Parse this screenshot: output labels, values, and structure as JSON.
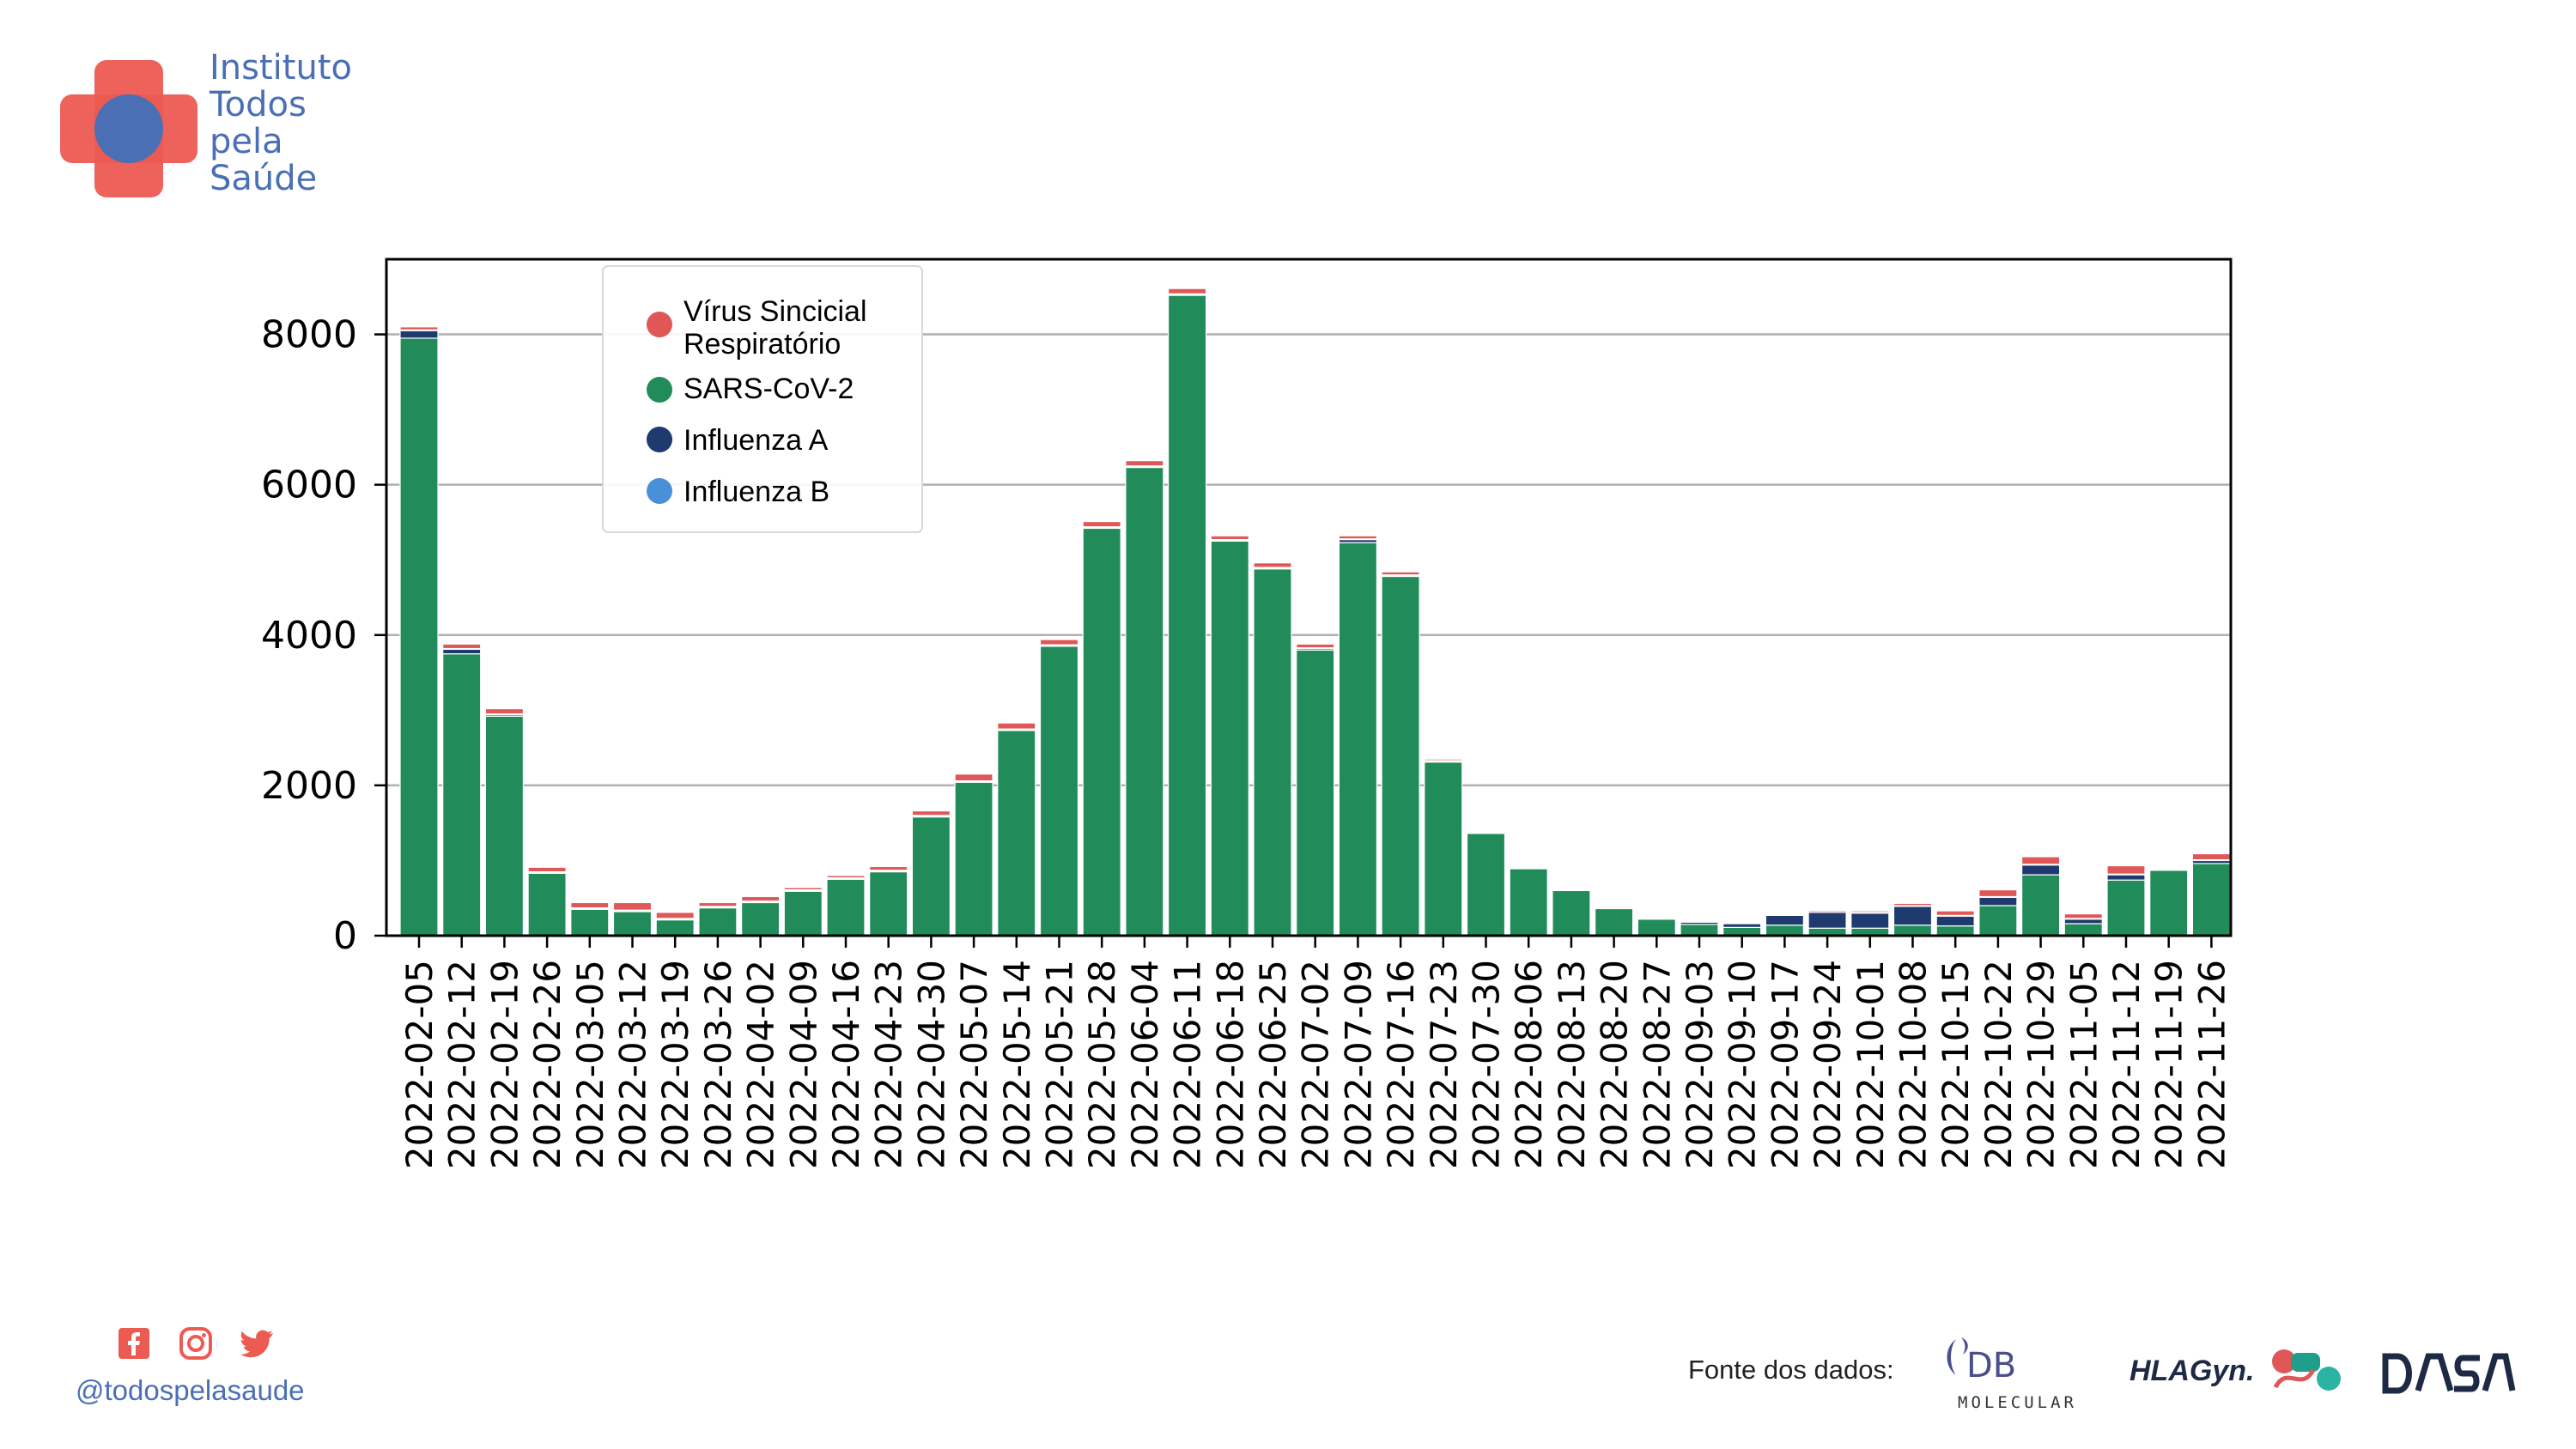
{
  "header": {
    "logo_name": "cross-logo-icon",
    "org_lines": [
      "Instituto",
      "Todos",
      "pela",
      "Saúde"
    ]
  },
  "chart_data": {
    "type": "bar",
    "stacked": true,
    "title": "",
    "xlabel": "",
    "ylabel": "",
    "ylim": [
      0,
      9000
    ],
    "yticks": [
      0,
      2000,
      4000,
      6000,
      8000
    ],
    "grid": "horizontal",
    "legend_position": "top-left",
    "categories": [
      "2022-02-05",
      "2022-02-12",
      "2022-02-19",
      "2022-02-26",
      "2022-03-05",
      "2022-03-12",
      "2022-03-19",
      "2022-03-26",
      "2022-04-02",
      "2022-04-09",
      "2022-04-16",
      "2022-04-23",
      "2022-04-30",
      "2022-05-07",
      "2022-05-14",
      "2022-05-21",
      "2022-05-28",
      "2022-06-04",
      "2022-06-11",
      "2022-06-18",
      "2022-06-25",
      "2022-07-02",
      "2022-07-09",
      "2022-07-16",
      "2022-07-23",
      "2022-07-30",
      "2022-08-06",
      "2022-08-13",
      "2022-08-20",
      "2022-08-27",
      "2022-09-03",
      "2022-09-10",
      "2022-09-17",
      "2022-09-24",
      "2022-10-01",
      "2022-10-08",
      "2022-10-15",
      "2022-10-22",
      "2022-10-29",
      "2022-11-05",
      "2022-11-12",
      "2022-11-19",
      "2022-11-26"
    ],
    "series": [
      {
        "name": "SARS-CoV-2",
        "color": "#218c5a",
        "values": [
          7950,
          3750,
          2920,
          830,
          350,
          320,
          210,
          370,
          440,
          590,
          750,
          850,
          1580,
          2040,
          2730,
          3850,
          5420,
          6230,
          8520,
          5250,
          4880,
          3800,
          5230,
          4780,
          2310,
          1360,
          890,
          600,
          360,
          220,
          150,
          110,
          140,
          100,
          100,
          140,
          130,
          400,
          810,
          160,
          740,
          870,
          960
        ]
      },
      {
        "name": "Influenza A",
        "color": "#1f3a6e",
        "values": [
          100,
          60,
          20,
          10,
          10,
          10,
          10,
          10,
          10,
          10,
          10,
          10,
          10,
          10,
          10,
          10,
          10,
          10,
          10,
          10,
          10,
          20,
          40,
          10,
          10,
          0,
          0,
          0,
          0,
          0,
          30,
          50,
          130,
          210,
          200,
          250,
          130,
          110,
          130,
          60,
          70,
          0,
          40
        ]
      },
      {
        "name": "Influenza B",
        "color": "#4a90d9",
        "values": [
          10,
          10,
          10,
          10,
          10,
          10,
          10,
          10,
          10,
          10,
          10,
          10,
          10,
          10,
          10,
          10,
          10,
          10,
          10,
          10,
          10,
          10,
          10,
          10,
          10,
          10,
          0,
          0,
          0,
          0,
          0,
          0,
          0,
          0,
          10,
          10,
          10,
          10,
          10,
          10,
          10,
          0,
          10
        ]
      },
      {
        "name": "Vírus Sincicial Respiratório",
        "color": "#e05757",
        "values": [
          40,
          60,
          70,
          60,
          70,
          100,
          80,
          50,
          60,
          30,
          30,
          50,
          60,
          90,
          80,
          70,
          70,
          70,
          70,
          50,
          60,
          50,
          40,
          40,
          20,
          10,
          0,
          0,
          10,
          10,
          10,
          10,
          10,
          20,
          20,
          30,
          60,
          90,
          100,
          60,
          110,
          10,
          80
        ]
      }
    ],
    "legend_order": [
      "Vírus Sincicial Respiratório",
      "SARS-CoV-2",
      "Influenza A",
      "Influenza B"
    ],
    "legend_lines": [
      [
        "Vírus Sincicial",
        "Respiratório"
      ],
      [
        "SARS-CoV-2"
      ],
      [
        "Influenza A"
      ],
      [
        "Influenza B"
      ]
    ]
  },
  "footer": {
    "social_icons": [
      "facebook-icon",
      "instagram-icon",
      "twitter-icon"
    ],
    "handle": "@todospelasaude",
    "source_label": "Fonte dos dados:",
    "partner_logos": [
      "DB MOLECULAR",
      "HLAGyn",
      "DASA"
    ]
  }
}
